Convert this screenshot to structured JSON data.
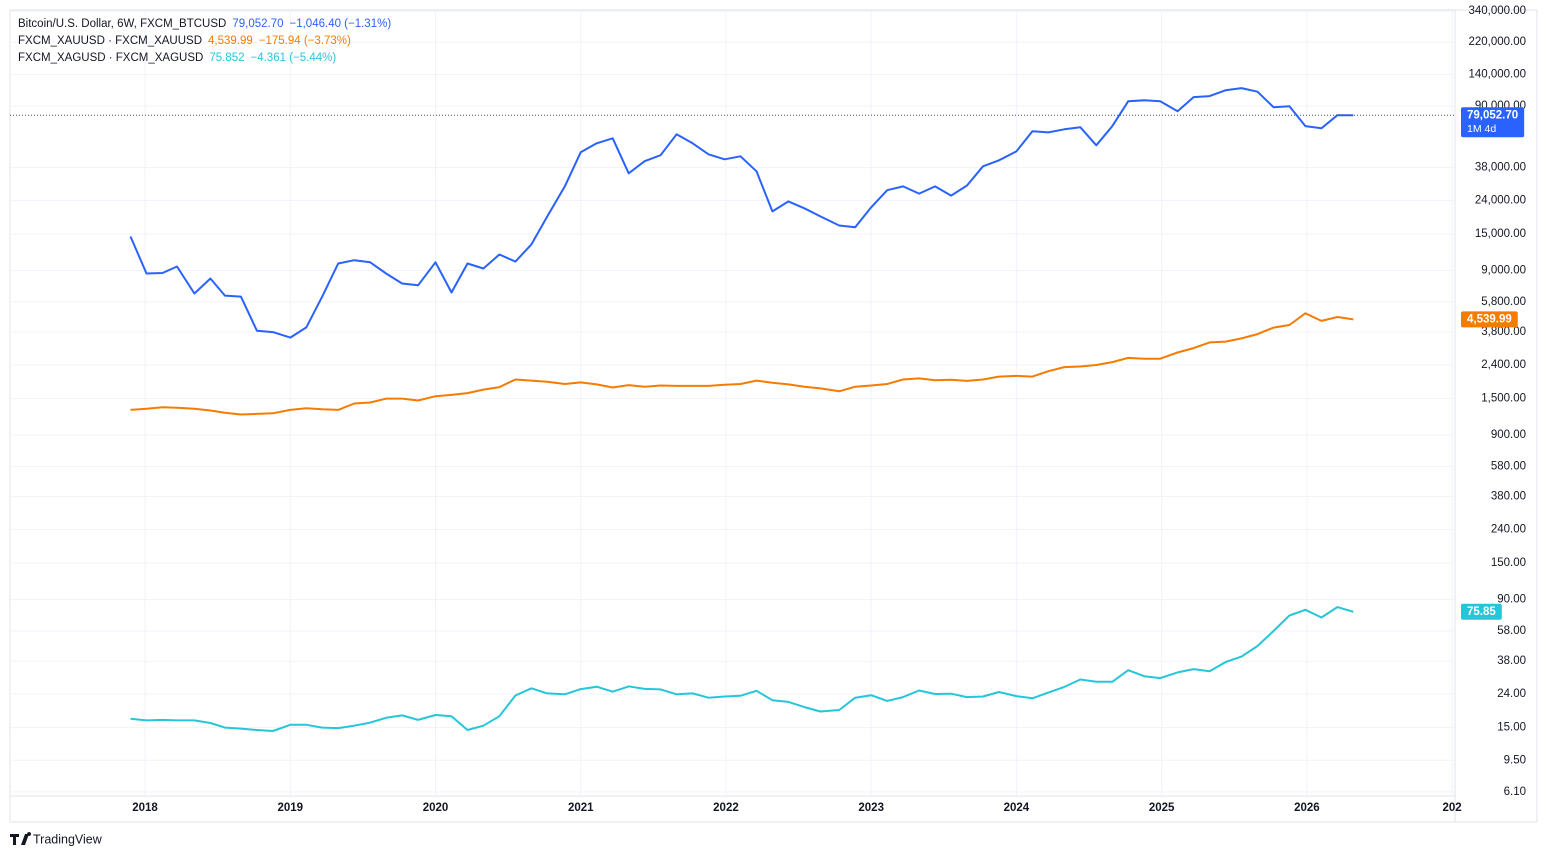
{
  "chart_data": {
    "type": "line",
    "log_scale": true,
    "grid": true,
    "footer": "TradingView",
    "x": [
      2017.9,
      2018.01,
      2018.12,
      2018.22,
      2018.34,
      2018.45,
      2018.55,
      2018.66,
      2018.77,
      2018.88,
      2019.0,
      2019.11,
      2019.22,
      2019.33,
      2019.44,
      2019.55,
      2019.66,
      2019.77,
      2019.88,
      2020.0,
      2020.11,
      2020.22,
      2020.33,
      2020.44,
      2020.55,
      2020.66,
      2020.77,
      2020.89,
      2021.0,
      2021.11,
      2021.22,
      2021.33,
      2021.44,
      2021.55,
      2021.66,
      2021.77,
      2021.88,
      2021.99,
      2022.1,
      2022.21,
      2022.32,
      2022.43,
      2022.54,
      2022.65,
      2022.78,
      2022.89,
      2023.0,
      2023.11,
      2023.22,
      2023.33,
      2023.44,
      2023.55,
      2023.66,
      2023.77,
      2023.88,
      2024.0,
      2024.11,
      2024.22,
      2024.33,
      2024.44,
      2024.55,
      2024.66,
      2024.77,
      2024.88,
      2024.99,
      2025.11,
      2025.22,
      2025.33,
      2025.44,
      2025.55,
      2025.66,
      2025.77,
      2025.88,
      2025.99,
      2026.1,
      2026.21,
      2026.32
    ],
    "xlim": [
      2017.07,
      2027.02
    ],
    "xticks": [
      2018,
      2019,
      2020,
      2021,
      2022,
      2023,
      2024,
      2025,
      2026,
      {
        "value": 2027,
        "label": "202"
      }
    ],
    "ylim": [
      5.76,
      345000
    ],
    "yticks": [
      {
        "value": 340000,
        "label": "340,000.00"
      },
      {
        "value": 220000,
        "label": "220,000.00"
      },
      {
        "value": 140000,
        "label": "140,000.00"
      },
      {
        "value": 90000,
        "label": "90,000.00"
      },
      {
        "value": 38000,
        "label": "38,000.00"
      },
      {
        "value": 24000,
        "label": "24,000.00"
      },
      {
        "value": 15000,
        "label": "15,000.00"
      },
      {
        "value": 9000,
        "label": "9,000.00"
      },
      {
        "value": 5800,
        "label": "5,800.00"
      },
      {
        "value": 3800,
        "label": "3,800.00"
      },
      {
        "value": 2400,
        "label": "2,400.00"
      },
      {
        "value": 1500,
        "label": "1,500.00"
      },
      {
        "value": 900,
        "label": "900.00"
      },
      {
        "value": 580,
        "label": "580.00"
      },
      {
        "value": 380,
        "label": "380.00"
      },
      {
        "value": 240,
        "label": "240.00"
      },
      {
        "value": 150,
        "label": "150.00"
      },
      {
        "value": 90,
        "label": "90.00"
      },
      {
        "value": 58,
        "label": "58.00"
      },
      {
        "value": 38,
        "label": "38.00"
      },
      {
        "value": 24,
        "label": "24.00"
      },
      {
        "value": 15,
        "label": "15.00"
      },
      {
        "value": 9.5,
        "label": "9.50"
      },
      {
        "value": 6.1,
        "label": "6.10"
      }
    ],
    "series": [
      {
        "name": "Bitcoin/U.S. Dollar, 6W, FXCM_BTCUSD",
        "color": "#2962ff",
        "last_price": "79,052.70",
        "change": "−1,046.40 (−1.31%)",
        "tag": "79,052.70",
        "countdown": "1M 4d",
        "price_line": true,
        "values": [
          14500,
          8630,
          8700,
          9520,
          6530,
          8050,
          6340,
          6250,
          3880,
          3800,
          3520,
          4060,
          6250,
          9930,
          10400,
          10100,
          8630,
          7510,
          7320,
          10100,
          6620,
          9930,
          9260,
          11270,
          10200,
          12970,
          19190,
          29200,
          47100,
          53400,
          57300,
          35100,
          41600,
          45200,
          60600,
          53400,
          45800,
          42700,
          44500,
          36100,
          20600,
          23700,
          21500,
          19190,
          16900,
          16500,
          21800,
          27700,
          29200,
          26400,
          29200,
          25700,
          29600,
          38700,
          42100,
          47700,
          63200,
          62200,
          65000,
          66900,
          51900,
          67900,
          96200,
          97500,
          96200,
          83600,
          102000,
          103400,
          112200,
          115600,
          110000,
          88500,
          89800,
          67900,
          65900,
          79100,
          79052.7
        ]
      },
      {
        "name": "FXCM_XAUUSD · FXCM_XAUUSD",
        "color": "#f57c00",
        "last_price": "4,539.99",
        "change": "−175.94 (−3.73%)",
        "tag": "4,539.99",
        "values": [
          1280,
          1300,
          1330,
          1320,
          1300,
          1270,
          1230,
          1200,
          1210,
          1220,
          1280,
          1310,
          1290,
          1280,
          1400,
          1420,
          1500,
          1500,
          1460,
          1550,
          1580,
          1620,
          1700,
          1760,
          1960,
          1930,
          1900,
          1840,
          1880,
          1830,
          1750,
          1810,
          1770,
          1800,
          1790,
          1790,
          1790,
          1820,
          1840,
          1930,
          1870,
          1830,
          1770,
          1730,
          1660,
          1770,
          1800,
          1840,
          1960,
          1990,
          1940,
          1950,
          1920,
          1960,
          2040,
          2060,
          2040,
          2200,
          2330,
          2350,
          2400,
          2500,
          2650,
          2620,
          2620,
          2860,
          3040,
          3290,
          3330,
          3480,
          3700,
          4050,
          4200,
          4950,
          4450,
          4700,
          4539.99
        ]
      },
      {
        "name": "FXCM_XAGUSD · FXCM_XAGUSD",
        "color": "#26c6da",
        "last_price": "75.852",
        "change": "−4.361 (−5.44%)",
        "tag": "75.85",
        "values": [
          17,
          16.6,
          16.7,
          16.6,
          16.6,
          16.0,
          15.0,
          14.8,
          14.5,
          14.3,
          15.6,
          15.6,
          15.0,
          14.9,
          15.4,
          16.1,
          17.2,
          17.8,
          16.7,
          17.9,
          17.6,
          14.5,
          15.4,
          17.6,
          23.5,
          26,
          24.2,
          23.9,
          25.7,
          26.6,
          24.8,
          26.7,
          25.8,
          25.6,
          23.9,
          24.2,
          22.8,
          23.2,
          23.4,
          25.1,
          22,
          21.5,
          20,
          18.8,
          19.2,
          22.8,
          23.6,
          21.8,
          23,
          25.2,
          24,
          24.1,
          23,
          23.2,
          24.7,
          23.3,
          22.6,
          24.5,
          26.5,
          29.4,
          28.5,
          28.5,
          33.5,
          30.8,
          30,
          32.5,
          34,
          33,
          37.5,
          40.5,
          47,
          58,
          72,
          78,
          70,
          81,
          75.852
        ]
      }
    ]
  }
}
